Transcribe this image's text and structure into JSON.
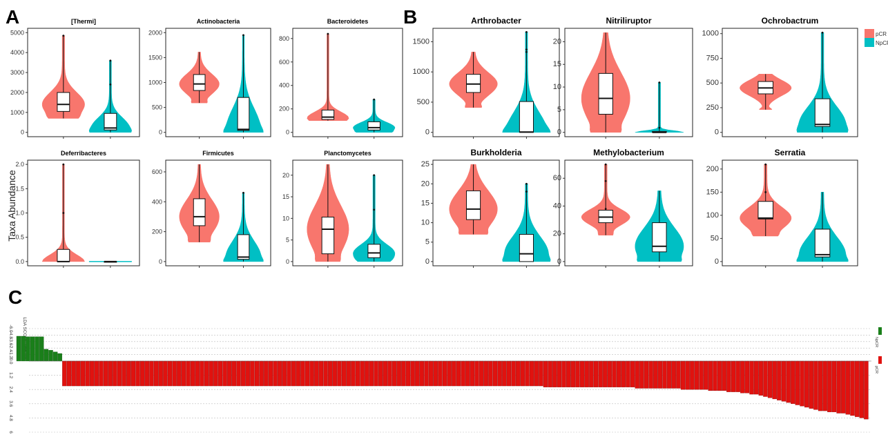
{
  "panels": {
    "A": "A",
    "B": "B",
    "C": "C"
  },
  "y_axis_label": "Taxa Abundance",
  "legend": {
    "items": [
      {
        "name": "pCR",
        "color": "#F8766D"
      },
      {
        "name": "NpCR",
        "color": "#00BFC4"
      }
    ]
  },
  "chart_data": [
    {
      "type": "violin",
      "title": "[Thermi]",
      "ylim": [
        0,
        5000
      ],
      "ticks": [
        0,
        1000,
        2000,
        3000,
        4000,
        5000
      ],
      "series": [
        {
          "name": "pCR",
          "min": 700,
          "q1": 1050,
          "median": 1400,
          "q3": 2000,
          "max": 4850,
          "outliers": [
            4850
          ]
        },
        {
          "name": "NpCR",
          "min": 0,
          "q1": 120,
          "median": 220,
          "q3": 950,
          "max": 3600,
          "outliers": [
            3600,
            2400
          ]
        }
      ]
    },
    {
      "type": "violin",
      "title": "Actinobacteria",
      "ylim": [
        0,
        2000
      ],
      "ticks": [
        0,
        500,
        1000,
        1500,
        2000
      ],
      "series": [
        {
          "name": "pCR",
          "min": 590,
          "q1": 840,
          "median": 970,
          "q3": 1160,
          "max": 1610,
          "outliers": []
        },
        {
          "name": "NpCR",
          "min": 0,
          "q1": 40,
          "median": 60,
          "q3": 700,
          "max": 1950,
          "outliers": [
            1950
          ]
        }
      ]
    },
    {
      "type": "violin",
      "title": "Bacteroidetes",
      "ylim": [
        0,
        850
      ],
      "ticks": [
        0,
        200,
        400,
        600,
        800
      ],
      "series": [
        {
          "name": "pCR",
          "min": 100,
          "q1": 110,
          "median": 130,
          "q3": 190,
          "max": 840,
          "outliers": [
            840
          ]
        },
        {
          "name": "NpCR",
          "min": 0,
          "q1": 20,
          "median": 40,
          "q3": 90,
          "max": 280,
          "outliers": [
            280
          ]
        }
      ]
    },
    {
      "type": "violin",
      "title": "Deferribacteres",
      "ylim": [
        0,
        2.0
      ],
      "ticks": [
        0.0,
        0.5,
        1.0,
        1.5,
        2.0
      ],
      "series": [
        {
          "name": "pCR",
          "min": 0,
          "q1": 0,
          "median": 0,
          "q3": 0.25,
          "max": 2.0,
          "outliers": [
            2.0,
            1.0
          ]
        },
        {
          "name": "NpCR",
          "min": 0,
          "q1": 0,
          "median": 0,
          "q3": 0,
          "max": 0,
          "outliers": []
        }
      ]
    },
    {
      "type": "violin",
      "title": "Firmicutes",
      "ylim": [
        0,
        650
      ],
      "ticks": [
        0,
        200,
        400,
        600
      ],
      "series": [
        {
          "name": "pCR",
          "min": 130,
          "q1": 240,
          "median": 300,
          "q3": 420,
          "max": 650,
          "outliers": []
        },
        {
          "name": "NpCR",
          "min": 0,
          "q1": 15,
          "median": 30,
          "q3": 180,
          "max": 460,
          "outliers": [
            460
          ]
        }
      ]
    },
    {
      "type": "violin",
      "title": "Planctomycetes",
      "ylim": [
        0,
        22.5
      ],
      "ticks": [
        0,
        5,
        10,
        15,
        20
      ],
      "series": [
        {
          "name": "pCR",
          "min": 0,
          "q1": 1.8,
          "median": 7.5,
          "q3": 10.3,
          "max": 22.5,
          "outliers": []
        },
        {
          "name": "NpCR",
          "min": 0,
          "q1": 0.9,
          "median": 2,
          "q3": 4,
          "max": 20,
          "outliers": [
            20,
            12
          ]
        }
      ]
    },
    {
      "type": "violin",
      "title": "Arthrobacter",
      "ylim": [
        0,
        1650
      ],
      "ticks": [
        0,
        500,
        1000,
        1500
      ],
      "series": [
        {
          "name": "pCR",
          "min": 410,
          "q1": 660,
          "median": 800,
          "q3": 960,
          "max": 1330,
          "outliers": []
        },
        {
          "name": "NpCR",
          "min": 0,
          "q1": 0,
          "median": 5,
          "q3": 510,
          "max": 1660,
          "outliers": [
            1660,
            1370,
            1330
          ]
        }
      ]
    },
    {
      "type": "violin",
      "title": "Nitriliruptor",
      "ylim": [
        0,
        22
      ],
      "ticks": [
        0,
        5,
        10,
        15,
        20
      ],
      "series": [
        {
          "name": "pCR",
          "min": 0,
          "q1": 4,
          "median": 7.5,
          "q3": 13,
          "max": 22,
          "outliers": []
        },
        {
          "name": "NpCR",
          "min": 0,
          "q1": 0,
          "median": 0,
          "q3": 0.2,
          "max": 11,
          "outliers": [
            11,
            1
          ]
        }
      ]
    },
    {
      "type": "violin",
      "title": "Ochrobactrum",
      "ylim": [
        0,
        1010
      ],
      "ticks": [
        0,
        250,
        500,
        750,
        1000
      ],
      "series": [
        {
          "name": "pCR",
          "min": 230,
          "q1": 390,
          "median": 450,
          "q3": 515,
          "max": 590,
          "outliers": []
        },
        {
          "name": "NpCR",
          "min": 0,
          "q1": 60,
          "median": 80,
          "q3": 340,
          "max": 1010,
          "outliers": [
            1010
          ]
        }
      ]
    },
    {
      "type": "violin",
      "title": "Burkholderia",
      "ylim": [
        0,
        25
      ],
      "ticks": [
        0,
        5,
        10,
        15,
        20,
        25
      ],
      "series": [
        {
          "name": "pCR",
          "min": 7,
          "q1": 10.8,
          "median": 13.5,
          "q3": 18.2,
          "max": 25,
          "outliers": []
        },
        {
          "name": "NpCR",
          "min": 0,
          "q1": 0,
          "median": 2,
          "q3": 7,
          "max": 20,
          "outliers": [
            20,
            18
          ]
        }
      ]
    },
    {
      "type": "violin",
      "title": "Methylobacterium",
      "ylim": [
        0,
        70
      ],
      "ticks": [
        0,
        20,
        40,
        60
      ],
      "series": [
        {
          "name": "pCR",
          "min": 19,
          "q1": 28,
          "median": 32,
          "q3": 37,
          "max": 70,
          "outliers": [
            70,
            58,
            38
          ]
        },
        {
          "name": "NpCR",
          "min": 0,
          "q1": 7,
          "median": 11,
          "q3": 28,
          "max": 51,
          "outliers": []
        }
      ]
    },
    {
      "type": "violin",
      "title": "Serratia",
      "ylim": [
        0,
        210
      ],
      "ticks": [
        0,
        50,
        100,
        150,
        200
      ],
      "series": [
        {
          "name": "pCR",
          "min": 55,
          "q1": 92,
          "median": 94,
          "q3": 130,
          "max": 210,
          "outliers": [
            210,
            150
          ]
        },
        {
          "name": "NpCR",
          "min": 0,
          "q1": 10,
          "median": 15,
          "q3": 70,
          "max": 150,
          "outliers": []
        }
      ]
    },
    {
      "type": "bar",
      "title": "",
      "ylabel": "LDA SCORE (log 10)",
      "ticks": [
        -6.0,
        -4.8,
        -3.6,
        -2.4,
        -1.2,
        0.0,
        1.2,
        2.4,
        3.6,
        4.8,
        6.0
      ],
      "tick_labels": [
        "-6.0",
        "-4.8",
        "-3.6",
        "-2.4",
        "-1.2",
        "0.0",
        "1.2",
        "2.4",
        "3.6",
        "4.8",
        "6"
      ],
      "ylim": [
        -6,
        6
      ],
      "legend": [
        {
          "name": "NpCR",
          "color": "#1a7f1a"
        },
        {
          "name": "pCR",
          "color": "#e0120f"
        }
      ],
      "series": [
        {
          "name": "NpCR",
          "color": "#1a7f1a",
          "values": [
            4.6,
            4.6,
            4.5,
            4.5,
            4.5,
            4.5,
            2.2,
            2.0,
            1.7,
            1.4
          ]
        },
        {
          "name": "pCR",
          "color": "#e0120f",
          "values": [
            2.1,
            2.1,
            2.1,
            2.1,
            2.1,
            2.1,
            2.1,
            2.1,
            2.1,
            2.1,
            2.1,
            2.1,
            2.1,
            2.1,
            2.1,
            2.1,
            2.1,
            2.1,
            2.1,
            2.1,
            2.1,
            2.1,
            2.1,
            2.1,
            2.1,
            2.1,
            2.1,
            2.1,
            2.1,
            2.1,
            2.1,
            2.1,
            2.1,
            2.1,
            2.1,
            2.1,
            2.1,
            2.1,
            2.1,
            2.1,
            2.1,
            2.1,
            2.1,
            2.1,
            2.1,
            2.1,
            2.1,
            2.1,
            2.1,
            2.1,
            2.1,
            2.1,
            2.1,
            2.1,
            2.1,
            2.1,
            2.1,
            2.1,
            2.1,
            2.1,
            2.1,
            2.1,
            2.1,
            2.1,
            2.1,
            2.1,
            2.1,
            2.1,
            2.1,
            2.1,
            2.1,
            2.1,
            2.1,
            2.1,
            2.1,
            2.1,
            2.1,
            2.1,
            2.1,
            2.1,
            2.1,
            2.1,
            2.1,
            2.1,
            2.1,
            2.1,
            2.1,
            2.1,
            2.1,
            2.1,
            2.1,
            2.1,
            2.1,
            2.1,
            2.1,
            2.1,
            2.1,
            2.1,
            2.1,
            2.1,
            2.1,
            2.1,
            2.1,
            2.1,
            2.1,
            2.2,
            2.2,
            2.2,
            2.2,
            2.2,
            2.2,
            2.2,
            2.2,
            2.2,
            2.2,
            2.2,
            2.2,
            2.2,
            2.2,
            2.2,
            2.2,
            2.2,
            2.2,
            2.2,
            2.2,
            2.3,
            2.3,
            2.3,
            2.3,
            2.3,
            2.3,
            2.3,
            2.3,
            2.3,
            2.3,
            2.4,
            2.4,
            2.4,
            2.4,
            2.4,
            2.4,
            2.5,
            2.5,
            2.5,
            2.5,
            2.6,
            2.6,
            2.6,
            2.7,
            2.7,
            2.8,
            2.8,
            2.9,
            3.0,
            3.1,
            3.2,
            3.3,
            3.4,
            3.5,
            3.6,
            3.7,
            3.8,
            3.9,
            4.0,
            4.1,
            4.2,
            4.2,
            4.3,
            4.3,
            4.4,
            4.4,
            4.5,
            4.6,
            4.7,
            4.8,
            4.9
          ]
        }
      ]
    }
  ]
}
